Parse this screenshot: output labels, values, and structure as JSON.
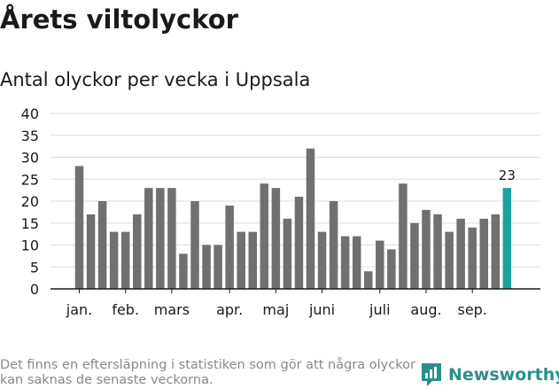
{
  "header": {
    "title": "Årets viltolyckor",
    "subtitle": "Antal olyckor per vecka i Uppsala"
  },
  "footer": {
    "note": "Det finns en eftersläpning i statistiken som gör att några olyckor kan saknas de senaste veckorna.",
    "brand": "Newsworthy",
    "brand_icon": "newsworthy-logo-icon"
  },
  "colors": {
    "bar": "#707070",
    "highlight": "#1aa39a",
    "grid": "#dddddd",
    "axis": "#1a1a1a",
    "brand": "#2b8f89"
  },
  "chart_data": {
    "type": "bar",
    "title": "Antal olyckor per vecka i Uppsala",
    "xlabel": "",
    "ylabel": "",
    "ylim": [
      0,
      40
    ],
    "yticks": [
      0,
      5,
      10,
      15,
      20,
      25,
      30,
      35,
      40
    ],
    "grid": true,
    "legend": "none",
    "values": [
      28,
      17,
      20,
      13,
      13,
      17,
      23,
      23,
      23,
      8,
      20,
      10,
      10,
      19,
      13,
      13,
      24,
      23,
      16,
      21,
      32,
      13,
      20,
      12,
      12,
      4,
      11,
      9,
      24,
      15,
      18,
      17,
      13,
      16,
      14,
      16,
      17,
      23
    ],
    "month_labels": [
      {
        "label": "jan.",
        "week_index": 0
      },
      {
        "label": "feb.",
        "week_index": 4
      },
      {
        "label": "mars",
        "week_index": 8
      },
      {
        "label": "apr.",
        "week_index": 13
      },
      {
        "label": "maj",
        "week_index": 17
      },
      {
        "label": "juni",
        "week_index": 21
      },
      {
        "label": "juli",
        "week_index": 26
      },
      {
        "label": "aug.",
        "week_index": 30
      },
      {
        "label": "sep.",
        "week_index": 34
      }
    ],
    "highlight_index": 37,
    "highlight_label": "23"
  }
}
